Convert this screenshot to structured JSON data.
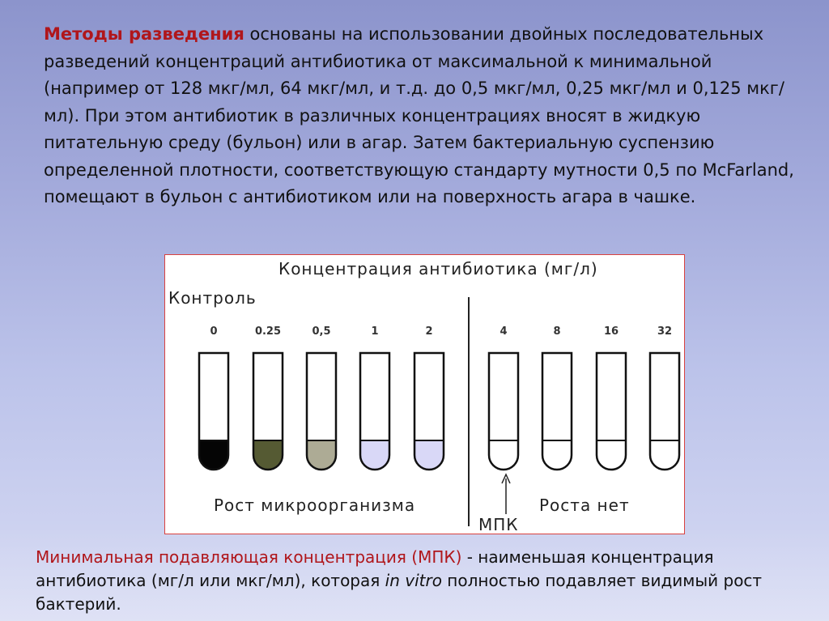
{
  "intro": {
    "highlight": "Методы разведения",
    "body": " основаны на использовании двойных последовательных разведений концентраций антибиотика от максимальной к минимальной (например от 128 мкг/мл, 64 мкг/мл, и т.д. до 0,5 мкг/мл, 0,25 мкг/мл и 0,125 мкг/мл). При этом антибиотик в различных концентрациях вносят в жидкую питательную среду (бульон) или в агар. Затем бактериальную суспензию определенной плотности, соответствующую стандарту мутности 0,5 по McFarland, помещают в бульон с антибиотиком или на поверхность агара в чашке."
  },
  "figure": {
    "title": "Концентрация антибиотика (мг/л)",
    "control_label": "Контроль",
    "growth_label": "Рост микроорганизма",
    "no_growth_label": "Роста нет",
    "mic_label": "МПК",
    "tubes": [
      {
        "label": "0",
        "fill_color": "#050505",
        "growth": true
      },
      {
        "label": "0.25",
        "fill_color": "#555a33",
        "growth": true
      },
      {
        "label": "0,5",
        "fill_color": "#adab95",
        "growth": true
      },
      {
        "label": "1",
        "fill_color": "#d9d8f7",
        "growth": true
      },
      {
        "label": "2",
        "fill_color": "#d9d8f7",
        "growth": true
      },
      {
        "label": "4",
        "fill_color": "#ffffff",
        "growth": false
      },
      {
        "label": "8",
        "fill_color": "#ffffff",
        "growth": false
      },
      {
        "label": "16",
        "fill_color": "#ffffff",
        "growth": false
      },
      {
        "label": "32",
        "fill_color": "#ffffff",
        "growth": false
      }
    ]
  },
  "definition": {
    "highlight": "Минимальная подавляющая концентрация (МПК)",
    "text_before_italic": " - наименьшая концентрация антибиотика (мг/л или мкг/мл), которая ",
    "italic": "in vitro",
    "text_after_italic": " полностью подавляет видимый рост бактерий."
  }
}
